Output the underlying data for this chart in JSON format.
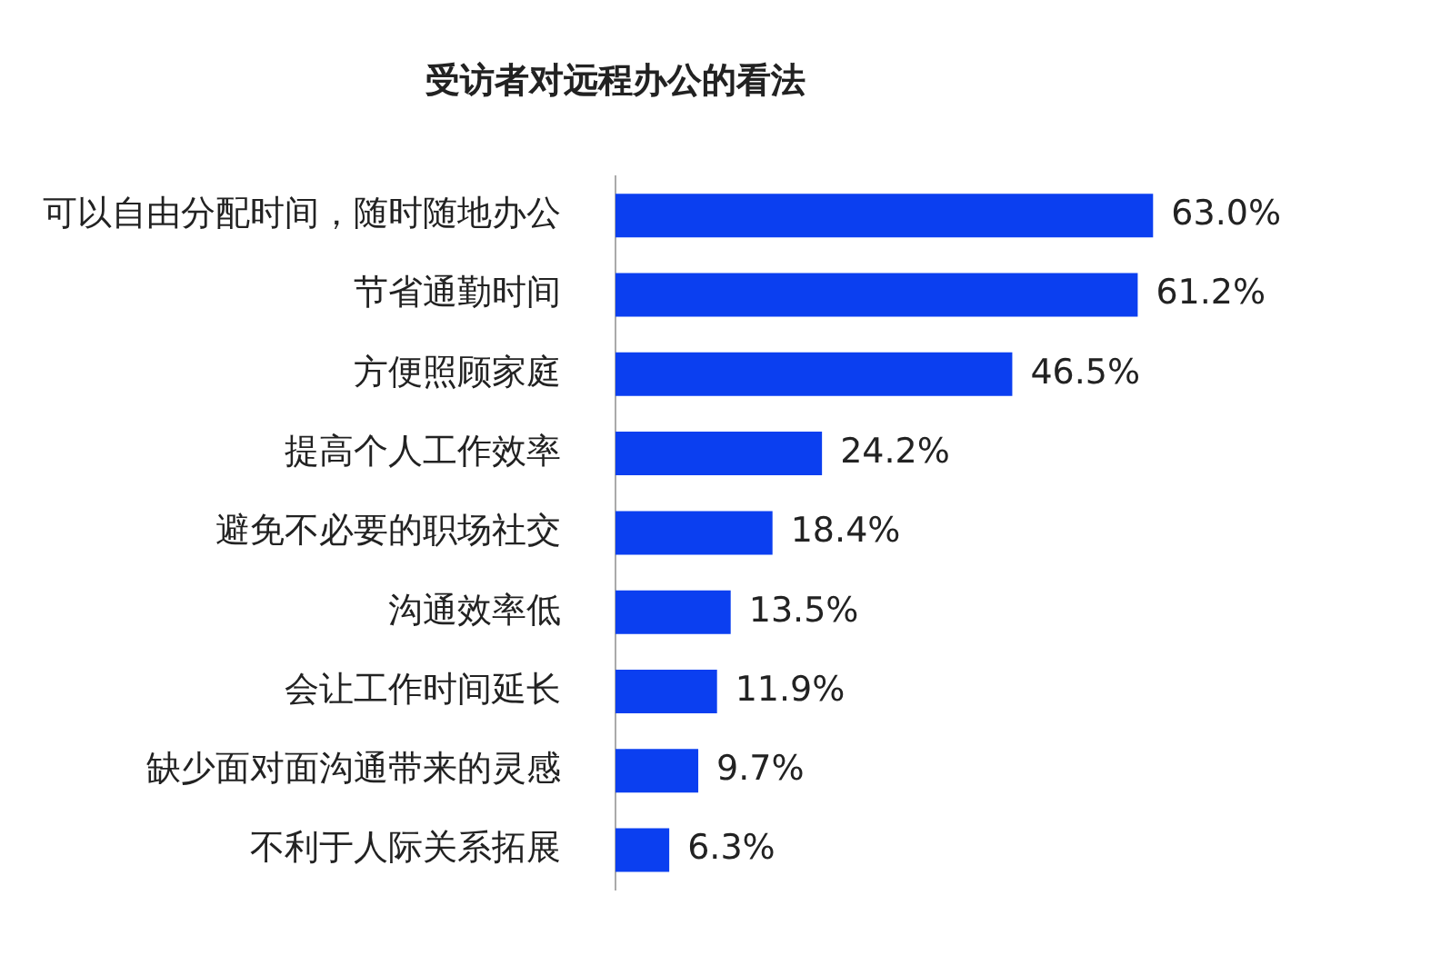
{
  "chart_data": {
    "type": "bar",
    "orientation": "horizontal",
    "title": "受访者对远程办公的看法",
    "categories": [
      "可以自由分配时间，随时随地办公",
      "节省通勤时间",
      "方便照顾家庭",
      "提高个人工作效率",
      "避免不必要的职场社交",
      "沟通效率低",
      "会让工作时间延长",
      "缺少面对面沟通带来的灵感",
      "不利于人际关系拓展"
    ],
    "values": [
      63.0,
      61.2,
      46.5,
      24.2,
      18.4,
      13.5,
      11.9,
      9.7,
      6.3
    ],
    "value_labels": [
      "63.0%",
      "61.2%",
      "46.5%",
      "24.2%",
      "18.4%",
      "13.5%",
      "11.9%",
      "9.7%",
      "6.3%"
    ],
    "color": "#0b3ff0",
    "legend": false
  }
}
